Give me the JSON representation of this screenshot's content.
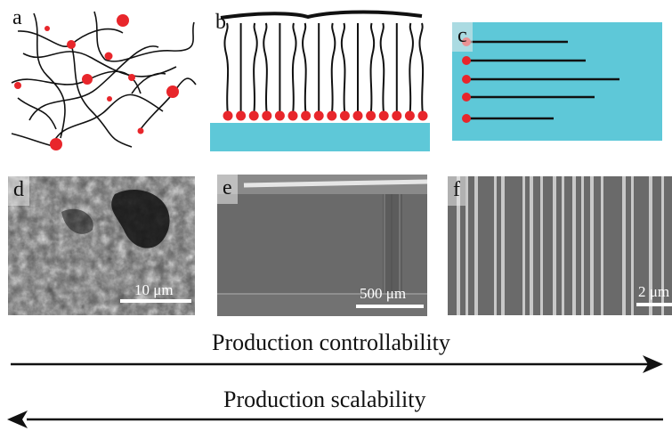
{
  "panels": {
    "a": {
      "label": "a"
    },
    "b": {
      "label": "b"
    },
    "c": {
      "label": "c"
    },
    "d": {
      "label": "d",
      "scale": "10 μm"
    },
    "e": {
      "label": "e",
      "scale": "500 μm"
    },
    "f": {
      "label": "f",
      "scale": "2 μm"
    }
  },
  "arrows": {
    "controllability": "Production controllability",
    "scalability": "Production scalability"
  },
  "colors": {
    "bead_red": "#e8262b",
    "substrate_cyan": "#5ec8d8",
    "chain_black": "#111111",
    "sem_gray": "#6e6e6e"
  }
}
